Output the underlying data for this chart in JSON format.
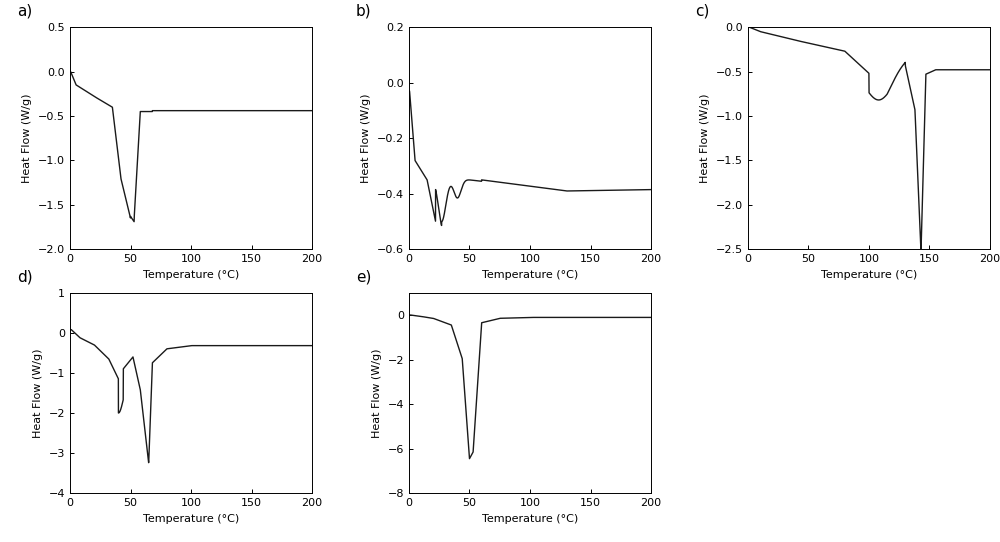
{
  "fig_width": 10.0,
  "fig_height": 5.42,
  "dpi": 100,
  "line_color": "#1a1a1a",
  "line_width": 1.0,
  "xlabel": "Temperature (°C)",
  "ylabel": "Heat Flow (W/g)",
  "xlim": [
    0,
    200
  ],
  "xticks": [
    0,
    50,
    100,
    150,
    200
  ],
  "background_color": "#ffffff",
  "subplots": {
    "a": {
      "label": "a)",
      "ylim": [
        -2.0,
        0.5
      ],
      "yticks": [
        0.5,
        0.0,
        -0.5,
        -1.0,
        -1.5,
        -2.0
      ]
    },
    "b": {
      "label": "b)",
      "ylim": [
        -0.6,
        0.2
      ],
      "yticks": [
        0.2,
        0.0,
        -0.2,
        -0.4,
        -0.6
      ]
    },
    "c": {
      "label": "c)",
      "ylim": [
        -2.5,
        0.0
      ],
      "yticks": [
        0.0,
        -0.5,
        -1.0,
        -1.5,
        -2.0,
        -2.5
      ]
    },
    "d": {
      "label": "d)",
      "ylim": [
        -4.0,
        1.0
      ],
      "yticks": [
        1.0,
        0.0,
        -1.0,
        -2.0,
        -3.0,
        -4.0
      ]
    },
    "e": {
      "label": "e)",
      "ylim": [
        -8.0,
        1.0
      ],
      "yticks": [
        0.0,
        -2.0,
        -4.0,
        -6.0,
        -8.0
      ]
    }
  }
}
